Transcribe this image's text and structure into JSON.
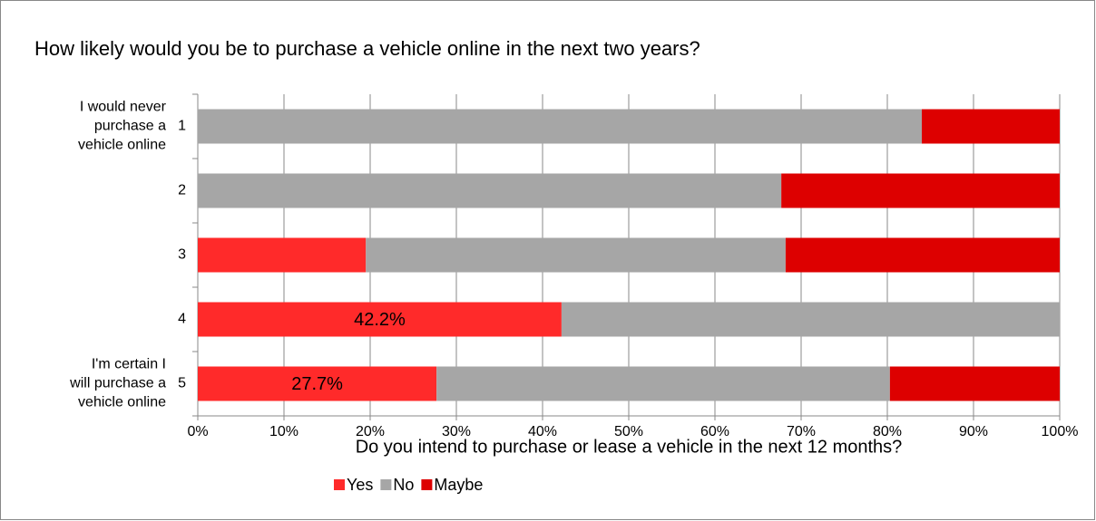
{
  "chart_data": {
    "type": "stacked_barh",
    "title": "How likely would you be to purchase a vehicle online in the next two years?",
    "xlabel": "Do you intend to purchase or lease a vehicle in the next 12 months?",
    "categories": [
      "1",
      "2",
      "3",
      "4",
      "5"
    ],
    "y_annotations": [
      [
        "I would never",
        "purchase a",
        "vehicle online"
      ],
      [
        "I'm certain I",
        "will purchase a",
        "vehicle online"
      ]
    ],
    "series": [
      {
        "name": "Yes",
        "color": "#ff2a2a",
        "values": [
          0,
          0,
          19.5,
          42.2,
          27.7
        ],
        "value_labels": [
          null,
          null,
          null,
          "42.2%",
          "27.7%"
        ]
      },
      {
        "name": "No",
        "color": "#a6a6a6",
        "values": [
          84.0,
          67.7,
          48.7,
          57.8,
          52.6
        ]
      },
      {
        "name": "Maybe",
        "color": "#dd0000",
        "values": [
          16.0,
          32.3,
          31.8,
          0,
          19.7
        ]
      }
    ],
    "xlim": [
      0,
      100
    ],
    "xticks": [
      {
        "value": 0,
        "label": "0%"
      },
      {
        "value": 10,
        "label": "10%"
      },
      {
        "value": 20,
        "label": "20%"
      },
      {
        "value": 30,
        "label": "30%"
      },
      {
        "value": 40,
        "label": "40%"
      },
      {
        "value": 50,
        "label": "50%"
      },
      {
        "value": 60,
        "label": "60%"
      },
      {
        "value": 70,
        "label": "70%"
      },
      {
        "value": 80,
        "label": "80%"
      },
      {
        "value": 90,
        "label": "90%"
      },
      {
        "value": 100,
        "label": "100%"
      }
    ],
    "grid": true,
    "legend": "bottom"
  }
}
